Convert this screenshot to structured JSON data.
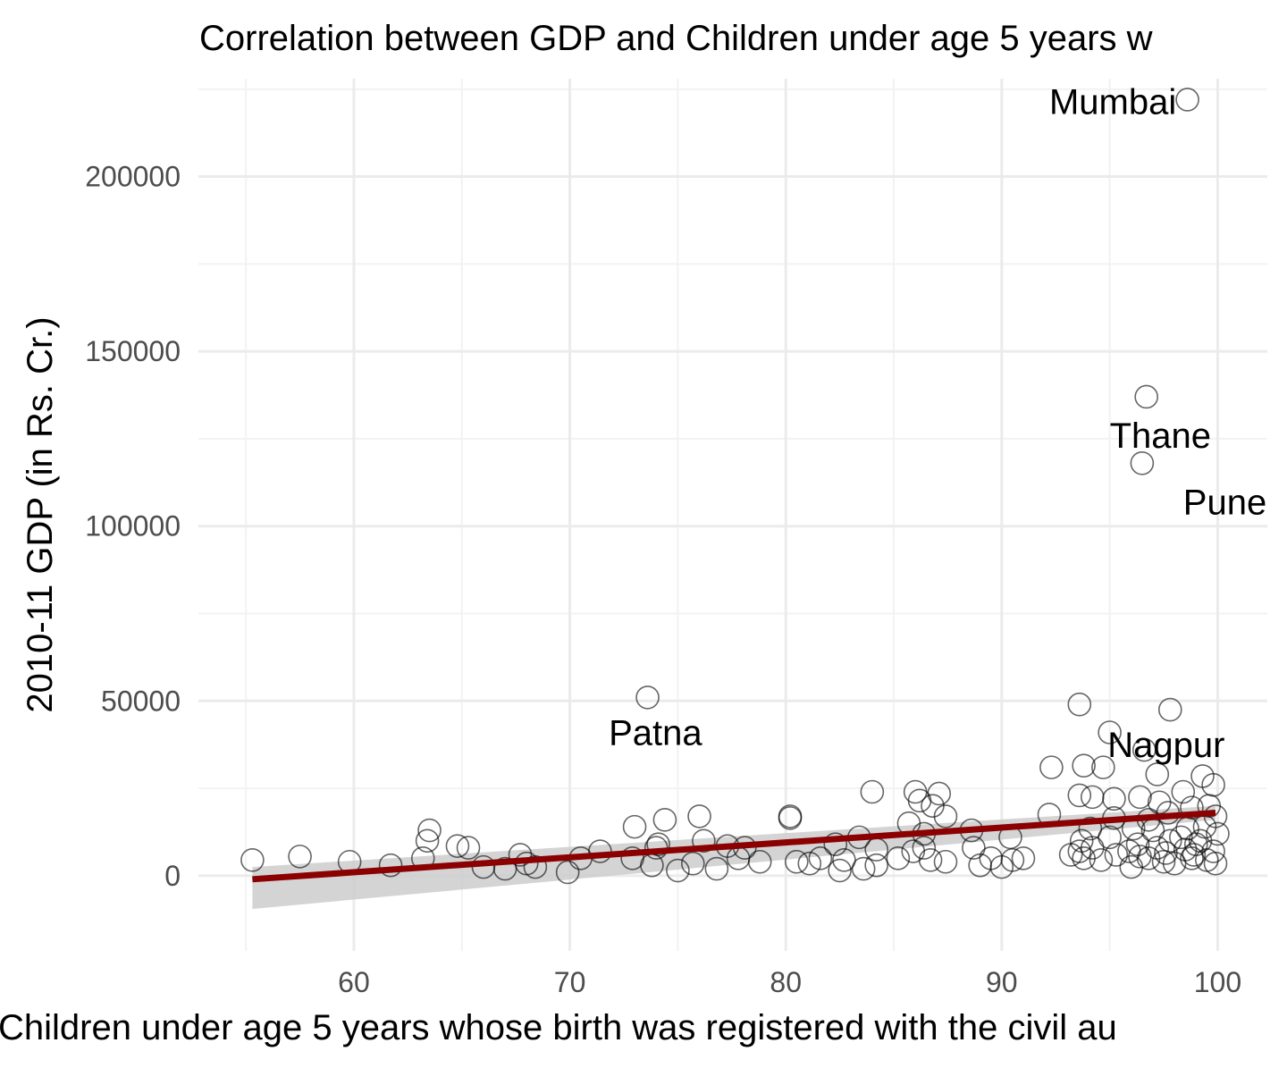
{
  "chart_data": {
    "type": "scatter",
    "title": "Correlation between GDP and Children under age 5 years w",
    "xlabel": "Children under age 5 years whose birth was registered with the civil au",
    "ylabel": "2010-11 GDP (in Rs. Cr.)",
    "xlim": [
      52.8,
      102.3
    ],
    "ylim": [
      -21500,
      228000
    ],
    "x_ticks": [
      60,
      70,
      80,
      90,
      100
    ],
    "x_tick_labels": [
      "60",
      "70",
      "80",
      "90",
      "100"
    ],
    "y_ticks": [
      0,
      50000,
      100000,
      150000,
      200000
    ],
    "y_tick_labels": [
      "0",
      "50000",
      "100000",
      "150000",
      "200000"
    ],
    "grid": true,
    "colors": {
      "points": "#000000",
      "trend": "#8b0000",
      "ribbon": "#cccccc"
    },
    "trend_line": {
      "x": [
        55.3,
        99.9
      ],
      "y": [
        -1000,
        18000
      ]
    },
    "confidence_band": {
      "x": [
        55.3,
        99.9
      ],
      "upper": [
        2500,
        20000
      ],
      "lower": [
        -9500,
        16000
      ]
    },
    "labels": [
      {
        "text": "Mumbai",
        "x": 92.2,
        "y": 221500
      },
      {
        "text": "Thane",
        "x": 95.0,
        "y": 126000
      },
      {
        "text": "Pune",
        "x": 98.4,
        "y": 107000
      },
      {
        "text": "Patna",
        "x": 71.8,
        "y": 41000
      },
      {
        "text": "Nagpur",
        "x": 94.9,
        "y": 37500
      }
    ],
    "points": [
      [
        98.6,
        222000
      ],
      [
        96.7,
        137000
      ],
      [
        96.5,
        118000
      ],
      [
        73.6,
        51000
      ],
      [
        93.6,
        49000
      ],
      [
        97.8,
        47500
      ],
      [
        95.0,
        41000
      ],
      [
        96.6,
        36000
      ],
      [
        92.3,
        31000
      ],
      [
        93.8,
        31500
      ],
      [
        94.7,
        31000
      ],
      [
        97.2,
        29000
      ],
      [
        99.3,
        28500
      ],
      [
        99.8,
        26000
      ],
      [
        84.0,
        24000
      ],
      [
        86.0,
        24000
      ],
      [
        87.1,
        23500
      ],
      [
        93.6,
        23000
      ],
      [
        94.2,
        22500
      ],
      [
        95.2,
        22000
      ],
      [
        96.4,
        22500
      ],
      [
        97.3,
        21000
      ],
      [
        98.4,
        24000
      ],
      [
        86.2,
        21500
      ],
      [
        86.8,
        20000
      ],
      [
        99.6,
        20000
      ],
      [
        97.7,
        18000
      ],
      [
        98.8,
        19500
      ],
      [
        99.9,
        17000
      ],
      [
        76.0,
        17000
      ],
      [
        80.2,
        16500
      ],
      [
        80.2,
        17000
      ],
      [
        92.2,
        17500
      ],
      [
        87.4,
        17000
      ],
      [
        95.2,
        16500
      ],
      [
        96.8,
        16000
      ],
      [
        74.4,
        16000
      ],
      [
        85.7,
        15000
      ],
      [
        73.0,
        14000
      ],
      [
        88.6,
        13000
      ],
      [
        94.1,
        13500
      ],
      [
        96.1,
        13500
      ],
      [
        97.0,
        13000
      ],
      [
        98.6,
        13500
      ],
      [
        99.4,
        14000
      ],
      [
        63.5,
        13000
      ],
      [
        64.8,
        8500
      ],
      [
        63.4,
        10000
      ],
      [
        65.3,
        8000
      ],
      [
        83.4,
        11000
      ],
      [
        86.4,
        12000
      ],
      [
        90.4,
        11000
      ],
      [
        93.7,
        10000
      ],
      [
        95.0,
        11000
      ],
      [
        96.3,
        9000
      ],
      [
        97.8,
        10000
      ],
      [
        98.3,
        11000
      ],
      [
        99.2,
        10000
      ],
      [
        100.0,
        12000
      ],
      [
        74.0,
        8000
      ],
      [
        74.1,
        9000
      ],
      [
        76.2,
        10000
      ],
      [
        77.3,
        8500
      ],
      [
        78.1,
        8000
      ],
      [
        82.3,
        9000
      ],
      [
        84.2,
        7500
      ],
      [
        85.9,
        7000
      ],
      [
        86.4,
        8000
      ],
      [
        88.7,
        8000
      ],
      [
        93.6,
        7000
      ],
      [
        94.2,
        8000
      ],
      [
        95.9,
        7000
      ],
      [
        97.2,
        8000
      ],
      [
        98.5,
        7500
      ],
      [
        99.0,
        9000
      ],
      [
        99.8,
        7000
      ],
      [
        71.4,
        7000
      ],
      [
        70.5,
        5000
      ],
      [
        67.7,
        6000
      ],
      [
        55.3,
        4500
      ],
      [
        57.5,
        5500
      ],
      [
        59.8,
        4000
      ],
      [
        61.7,
        3000
      ],
      [
        63.2,
        5000
      ],
      [
        66.0,
        2500
      ],
      [
        67.0,
        2000
      ],
      [
        68.0,
        3500
      ],
      [
        68.4,
        2500
      ],
      [
        69.9,
        1000
      ],
      [
        72.9,
        5000
      ],
      [
        73.8,
        3000
      ],
      [
        75.0,
        1500
      ],
      [
        75.7,
        3500
      ],
      [
        76.8,
        2000
      ],
      [
        77.8,
        5000
      ],
      [
        78.8,
        4000
      ],
      [
        80.5,
        4000
      ],
      [
        81.1,
        3500
      ],
      [
        81.6,
        5000
      ],
      [
        82.5,
        1500
      ],
      [
        82.7,
        4500
      ],
      [
        83.6,
        2000
      ],
      [
        84.2,
        3000
      ],
      [
        85.2,
        5000
      ],
      [
        86.7,
        4500
      ],
      [
        87.4,
        4000
      ],
      [
        89.0,
        3000
      ],
      [
        89.5,
        5000
      ],
      [
        90.0,
        2500
      ],
      [
        90.5,
        4500
      ],
      [
        91.0,
        5000
      ],
      [
        93.2,
        6000
      ],
      [
        93.8,
        5000
      ],
      [
        94.6,
        4500
      ],
      [
        95.3,
        6000
      ],
      [
        96.0,
        2500
      ],
      [
        96.8,
        5000
      ],
      [
        97.5,
        4000
      ],
      [
        98.0,
        3500
      ],
      [
        98.8,
        5000
      ],
      [
        99.5,
        4500
      ],
      [
        99.9,
        3500
      ],
      [
        98.9,
        6000
      ],
      [
        97.6,
        6500
      ],
      [
        96.4,
        5500
      ]
    ]
  }
}
